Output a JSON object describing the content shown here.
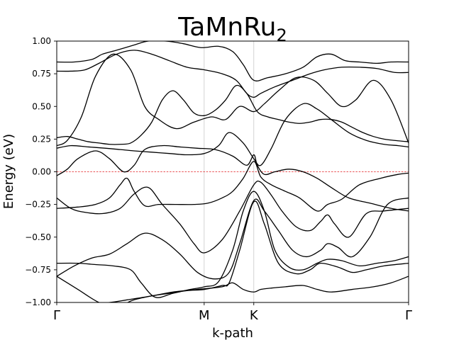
{
  "chart_data": {
    "type": "line",
    "title_main": "TaMnRu",
    "title_sub": "2",
    "xlabel": "k-path",
    "ylabel": "Energy (eV)",
    "ylim": [
      -1.0,
      1.0
    ],
    "xlim": [
      0.0,
      1.0
    ],
    "yticks": [
      {
        "value": -1.0,
        "label": "−1.00"
      },
      {
        "value": -0.75,
        "label": "−0.75"
      },
      {
        "value": -0.5,
        "label": "−0.50"
      },
      {
        "value": -0.25,
        "label": "−0.25"
      },
      {
        "value": 0.0,
        "label": "0.00"
      },
      {
        "value": 0.25,
        "label": "0.25"
      },
      {
        "value": 0.5,
        "label": "0.50"
      },
      {
        "value": 0.75,
        "label": "0.75"
      },
      {
        "value": 1.0,
        "label": "1.00"
      }
    ],
    "kpoints": [
      {
        "x": 0.0,
        "label": "Γ"
      },
      {
        "x": 0.419,
        "label": "M"
      },
      {
        "x": 0.56,
        "label": "K"
      },
      {
        "x": 1.0,
        "label": "Γ"
      }
    ],
    "fermi_level": 0.0,
    "grid": false,
    "series": [
      {
        "x": [
          0.0,
          0.06,
          0.15,
          0.2,
          0.27,
          0.33,
          0.4,
          0.47,
          0.5,
          0.53,
          0.56,
          0.58,
          0.61,
          0.65,
          0.7,
          0.74,
          0.78,
          0.84,
          0.9,
          0.95,
          1.0
        ],
        "values": [
          -1.05,
          -1.02,
          -1.0,
          -0.98,
          -0.95,
          -0.92,
          -0.9,
          -0.88,
          -0.85,
          -0.9,
          -0.92,
          -0.9,
          -0.89,
          -0.88,
          -0.87,
          -0.9,
          -0.92,
          -0.9,
          -0.88,
          -0.85,
          -0.8
        ]
      },
      {
        "x": [
          0.0,
          0.06,
          0.12,
          0.17,
          0.22,
          0.27,
          0.32,
          0.37,
          0.42,
          0.47,
          0.49,
          0.52,
          0.56,
          0.59,
          0.63,
          0.68,
          0.72,
          0.75,
          0.8,
          0.84,
          0.88,
          0.93,
          1.0
        ],
        "values": [
          -0.8,
          -0.9,
          -1.0,
          -1.03,
          -0.98,
          -0.95,
          -0.93,
          -0.91,
          -0.9,
          -0.87,
          -0.85,
          -0.6,
          -0.23,
          -0.4,
          -0.7,
          -0.78,
          -0.75,
          -0.7,
          -0.73,
          -0.77,
          -0.75,
          -0.72,
          -0.7
        ]
      },
      {
        "x": [
          0.0,
          0.06,
          0.11,
          0.16,
          0.21,
          0.24,
          0.28,
          0.33,
          0.38,
          0.42,
          0.46,
          0.5,
          0.53,
          0.56,
          0.59,
          0.62,
          0.66,
          0.7,
          0.74,
          0.77,
          0.81,
          0.86,
          0.91,
          0.96,
          1.0
        ],
        "values": [
          -0.7,
          -0.7,
          -0.71,
          -0.72,
          -0.75,
          -0.85,
          -0.96,
          -0.93,
          -0.9,
          -0.88,
          -0.84,
          -0.6,
          -0.3,
          -0.15,
          -0.3,
          -0.6,
          -0.73,
          -0.75,
          -0.7,
          -0.67,
          -0.68,
          -0.72,
          -0.7,
          -0.68,
          -0.65
        ]
      },
      {
        "x": [
          0.0,
          0.05,
          0.1,
          0.15,
          0.2,
          0.25,
          0.3,
          0.35,
          0.4,
          0.45,
          0.49,
          0.52,
          0.56,
          0.59,
          0.63,
          0.67,
          0.71,
          0.75,
          0.77,
          0.8,
          0.84,
          0.89,
          0.94,
          1.0
        ],
        "values": [
          -0.8,
          -0.72,
          -0.66,
          -0.63,
          -0.55,
          -0.47,
          -0.52,
          -0.63,
          -0.77,
          -0.82,
          -0.77,
          -0.55,
          -0.22,
          -0.3,
          -0.45,
          -0.6,
          -0.65,
          -0.6,
          -0.55,
          -0.58,
          -0.65,
          -0.5,
          -0.25,
          -0.2
        ]
      },
      {
        "x": [
          0.0,
          0.04,
          0.08,
          0.13,
          0.18,
          0.22,
          0.26,
          0.3,
          0.35,
          0.39,
          0.42,
          0.47,
          0.52,
          0.56,
          0.58,
          0.61,
          0.64,
          0.68,
          0.72,
          0.75,
          0.77,
          0.79,
          0.83,
          0.88,
          0.93,
          1.0
        ],
        "values": [
          -0.2,
          -0.28,
          -0.31,
          -0.32,
          -0.28,
          -0.17,
          -0.12,
          -0.25,
          -0.4,
          -0.55,
          -0.62,
          -0.52,
          -0.3,
          -0.1,
          -0.08,
          -0.18,
          -0.3,
          -0.42,
          -0.45,
          -0.38,
          -0.33,
          -0.4,
          -0.5,
          -0.32,
          -0.3,
          -0.28
        ]
      },
      {
        "x": [
          0.0,
          0.06,
          0.11,
          0.15,
          0.18,
          0.2,
          0.22,
          0.25,
          0.29,
          0.34,
          0.39,
          0.43,
          0.47,
          0.5,
          0.53,
          0.56,
          0.58,
          0.61,
          0.65,
          0.69,
          0.74,
          0.77,
          0.81,
          0.86,
          0.92,
          0.97,
          1.0
        ],
        "values": [
          -0.28,
          -0.27,
          -0.25,
          -0.2,
          -0.1,
          -0.05,
          -0.15,
          -0.26,
          -0.25,
          -0.25,
          -0.25,
          -0.24,
          -0.2,
          -0.15,
          -0.05,
          0.08,
          -0.04,
          -0.1,
          -0.15,
          -0.2,
          -0.3,
          -0.25,
          -0.21,
          -0.1,
          -0.05,
          -0.02,
          -0.01
        ]
      },
      {
        "x": [
          0.0,
          0.03,
          0.06,
          0.11,
          0.15,
          0.19,
          0.22,
          0.25,
          0.3,
          0.35,
          0.4,
          0.45,
          0.5,
          0.54,
          0.56,
          0.57,
          0.59,
          0.62,
          0.66,
          0.7,
          0.74,
          0.78,
          0.83,
          0.89,
          0.95,
          1.0
        ],
        "values": [
          -0.03,
          0.02,
          0.1,
          0.16,
          0.1,
          0.0,
          0.05,
          0.17,
          0.2,
          0.19,
          0.18,
          0.17,
          0.12,
          0.05,
          0.13,
          0.05,
          -0.02,
          0.0,
          0.02,
          0.0,
          -0.05,
          -0.12,
          -0.2,
          -0.24,
          -0.28,
          -0.3
        ]
      },
      {
        "x": [
          0.0,
          0.04,
          0.09,
          0.14,
          0.18,
          0.22,
          0.27,
          0.32,
          0.37,
          0.42,
          0.46,
          0.49,
          0.53,
          0.56,
          0.58,
          0.61,
          0.65,
          0.7,
          0.74,
          0.78,
          0.83,
          0.88,
          0.93,
          0.97,
          1.0
        ],
        "values": [
          0.18,
          0.2,
          0.19,
          0.18,
          0.17,
          0.16,
          0.15,
          0.14,
          0.13,
          0.14,
          0.2,
          0.3,
          0.22,
          0.1,
          0.05,
          0.18,
          0.4,
          0.52,
          0.48,
          0.4,
          0.3,
          0.24,
          0.21,
          0.2,
          0.19
        ]
      },
      {
        "x": [
          0.0,
          0.03,
          0.07,
          0.11,
          0.16,
          0.21,
          0.25,
          0.29,
          0.34,
          0.39,
          0.44,
          0.48,
          0.52,
          0.56,
          0.59,
          0.63,
          0.68,
          0.73,
          0.77,
          0.81,
          0.85,
          0.9,
          0.95,
          1.0
        ],
        "values": [
          0.2,
          0.24,
          0.42,
          0.73,
          0.9,
          0.78,
          0.5,
          0.4,
          0.33,
          0.38,
          0.42,
          0.4,
          0.5,
          0.46,
          0.52,
          0.62,
          0.72,
          0.7,
          0.6,
          0.5,
          0.55,
          0.7,
          0.55,
          0.22
        ]
      },
      {
        "x": [
          0.0,
          0.04,
          0.08,
          0.12,
          0.17,
          0.22,
          0.27,
          0.32,
          0.37,
          0.42,
          0.47,
          0.51,
          0.54,
          0.56,
          0.58,
          0.62,
          0.67,
          0.72,
          0.76,
          0.81,
          0.86,
          0.91,
          0.96,
          1.0
        ],
        "values": [
          0.77,
          0.77,
          0.78,
          0.83,
          0.9,
          0.93,
          0.9,
          0.85,
          0.8,
          0.78,
          0.75,
          0.7,
          0.6,
          0.57,
          0.6,
          0.65,
          0.7,
          0.75,
          0.78,
          0.8,
          0.8,
          0.79,
          0.76,
          0.76
        ]
      },
      {
        "x": [
          0.0,
          0.05,
          0.1,
          0.13,
          0.17,
          0.22,
          0.26,
          0.31,
          0.36,
          0.41,
          0.46,
          0.5,
          0.53,
          0.56,
          0.6,
          0.65,
          0.7,
          0.74,
          0.78,
          0.82,
          0.86,
          0.91,
          0.95,
          1.0
        ],
        "values": [
          0.84,
          0.84,
          0.86,
          0.9,
          0.93,
          0.97,
          1.0,
          1.0,
          0.98,
          0.95,
          0.96,
          0.92,
          0.82,
          0.7,
          0.72,
          0.75,
          0.8,
          0.88,
          0.9,
          0.85,
          0.84,
          0.83,
          0.84,
          0.84
        ]
      },
      {
        "x": [
          0.0,
          0.03,
          0.06,
          0.09,
          0.12,
          0.15,
          0.18,
          0.21,
          0.24,
          0.27,
          0.3,
          0.33,
          0.36,
          0.39,
          0.42,
          0.45,
          0.48,
          0.51,
          0.54,
          0.57,
          0.6,
          0.63,
          0.66,
          0.69,
          0.72,
          0.75,
          0.78,
          0.81,
          0.84,
          0.87,
          0.9,
          0.93,
          0.96,
          1.0
        ],
        "values": [
          0.26,
          0.27,
          0.25,
          0.23,
          0.22,
          0.21,
          0.21,
          0.22,
          0.28,
          0.38,
          0.55,
          0.62,
          0.55,
          0.45,
          0.43,
          0.47,
          0.55,
          0.66,
          0.6,
          0.46,
          0.42,
          0.4,
          0.38,
          0.37,
          0.38,
          0.4,
          0.4,
          0.38,
          0.34,
          0.3,
          0.27,
          0.25,
          0.24,
          0.23
        ]
      }
    ]
  }
}
